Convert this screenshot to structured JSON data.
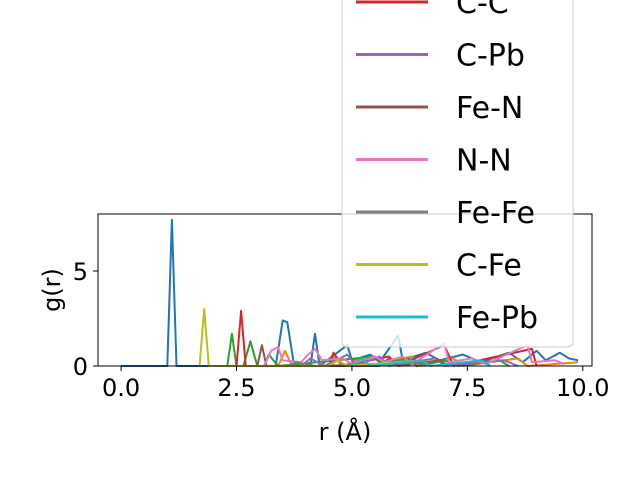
{
  "chart_data": {
    "type": "line",
    "title": "",
    "xlabel": "r (Å)",
    "ylabel": "g(r)",
    "xlim": [
      -0.5,
      10.2
    ],
    "ylim": [
      0,
      8
    ],
    "xticks": [
      0.0,
      2.5,
      5.0,
      7.5,
      10.0
    ],
    "xtick_labels": [
      "0.0",
      "2.5",
      "5.0",
      "7.5",
      "10.0"
    ],
    "yticks": [
      0,
      5
    ],
    "ytick_labels": [
      "0",
      "5"
    ],
    "grid": false,
    "legend_position": "top-right",
    "series": [
      {
        "name": "",
        "color": "#1f77b4",
        "points": [
          [
            0,
            0
          ],
          [
            1.0,
            0
          ],
          [
            1.1,
            7.7
          ],
          [
            1.2,
            0
          ],
          [
            3.35,
            0
          ],
          [
            3.5,
            2.4
          ],
          [
            3.6,
            2.3
          ],
          [
            3.75,
            0
          ],
          [
            4.1,
            0
          ],
          [
            4.2,
            1.7
          ],
          [
            4.3,
            0
          ],
          [
            4.9,
            1.1
          ],
          [
            5.0,
            0.3
          ],
          [
            5.4,
            0.6
          ],
          [
            5.6,
            0.2
          ],
          [
            6.0,
            1.6
          ],
          [
            6.1,
            0.3
          ],
          [
            6.6,
            0.7
          ],
          [
            6.9,
            0.3
          ],
          [
            7.4,
            0.6
          ],
          [
            7.8,
            0.2
          ],
          [
            8.4,
            0.7
          ],
          [
            8.7,
            0.2
          ],
          [
            9.0,
            0.8
          ],
          [
            9.2,
            0.3
          ],
          [
            9.5,
            0.7
          ],
          [
            9.7,
            0.4
          ],
          [
            9.9,
            0.3
          ]
        ]
      },
      {
        "name": "",
        "color": "#ff7f0e",
        "points": [
          [
            3.4,
            0
          ],
          [
            3.55,
            0.8
          ],
          [
            3.7,
            0
          ],
          [
            4.5,
            0
          ],
          [
            4.6,
            0.5
          ],
          [
            4.8,
            0
          ],
          [
            5.2,
            0.4
          ],
          [
            5.4,
            0
          ],
          [
            6.3,
            0.5
          ],
          [
            6.5,
            0
          ],
          [
            7.2,
            0.4
          ],
          [
            7.4,
            0
          ],
          [
            8.6,
            0.4
          ],
          [
            8.8,
            0
          ],
          [
            9.9,
            0.2
          ]
        ]
      },
      {
        "name": "",
        "color": "#2ca02c",
        "points": [
          [
            2.3,
            0
          ],
          [
            2.4,
            1.7
          ],
          [
            2.5,
            0
          ],
          [
            2.65,
            0
          ],
          [
            2.8,
            1.3
          ],
          [
            2.95,
            0
          ],
          [
            3.1,
            0
          ],
          [
            3.2,
            0.6
          ],
          [
            3.4,
            0
          ],
          [
            5.5,
            0.5
          ],
          [
            5.7,
            0.1
          ],
          [
            6.2,
            0.4
          ],
          [
            6.4,
            0
          ],
          [
            7.0,
            0.3
          ],
          [
            7.3,
            0
          ],
          [
            8.2,
            0.3
          ],
          [
            8.4,
            0
          ]
        ]
      },
      {
        "name": "C-C",
        "color": "#d62728",
        "points": [
          [
            2.5,
            0
          ],
          [
            2.6,
            2.9
          ],
          [
            2.7,
            0
          ],
          [
            4.5,
            0
          ],
          [
            4.6,
            0.7
          ],
          [
            4.8,
            0
          ],
          [
            5.8,
            0.5
          ],
          [
            6.0,
            0
          ],
          [
            7.0,
            1.1
          ],
          [
            7.2,
            0
          ],
          [
            8.9,
            0.9
          ],
          [
            9.0,
            0
          ]
        ]
      },
      {
        "name": "C-Pb",
        "color": "#9467bd",
        "points": [
          [
            3.9,
            0
          ],
          [
            4.1,
            0.4
          ],
          [
            4.4,
            0
          ],
          [
            4.9,
            0.6
          ],
          [
            5.1,
            0
          ],
          [
            5.6,
            0.5
          ],
          [
            5.8,
            0
          ],
          [
            6.8,
            0.4
          ],
          [
            7.0,
            0
          ],
          [
            8.3,
            0.3
          ],
          [
            8.6,
            0
          ]
        ]
      },
      {
        "name": "Fe-N",
        "color": "#8c564b",
        "points": [
          [
            2.95,
            0
          ],
          [
            3.05,
            1.1
          ],
          [
            3.15,
            0
          ],
          [
            5.6,
            0
          ],
          [
            5.8,
            0.4
          ],
          [
            6.0,
            0
          ],
          [
            6.9,
            0.3
          ],
          [
            7.1,
            0
          ]
        ]
      },
      {
        "name": "N-N",
        "color": "#e377c2",
        "points": [
          [
            3.1,
            0
          ],
          [
            3.25,
            0.8
          ],
          [
            3.4,
            1.0
          ],
          [
            3.5,
            0.3
          ],
          [
            3.9,
            0.2
          ],
          [
            4.05,
            0.6
          ],
          [
            4.2,
            0.9
          ],
          [
            4.35,
            0.3
          ],
          [
            4.8,
            0.4
          ],
          [
            5.0,
            0.1
          ],
          [
            5.5,
            0.5
          ],
          [
            5.7,
            0.2
          ],
          [
            6.1,
            0.5
          ],
          [
            6.3,
            0.1
          ],
          [
            7.0,
            1.2
          ],
          [
            7.1,
            0.2
          ],
          [
            7.6,
            0.4
          ],
          [
            7.9,
            0.1
          ],
          [
            8.8,
            1.1
          ],
          [
            8.9,
            0.2
          ],
          [
            9.4,
            0.3
          ],
          [
            9.6,
            0.1
          ]
        ]
      },
      {
        "name": "Fe-Fe",
        "color": "#7f7f7f",
        "points": [
          [
            3.6,
            0
          ],
          [
            3.8,
            0.2
          ],
          [
            4.2,
            0
          ],
          [
            6.4,
            0.2
          ],
          [
            6.6,
            0
          ]
        ]
      },
      {
        "name": "C-Fe",
        "color": "#bcbd22",
        "points": [
          [
            1.7,
            0
          ],
          [
            1.8,
            3.0
          ],
          [
            1.9,
            0
          ],
          [
            4.5,
            0
          ],
          [
            4.7,
            0.3
          ],
          [
            4.9,
            0
          ],
          [
            6.5,
            0.3
          ],
          [
            6.7,
            0
          ]
        ]
      },
      {
        "name": "Fe-Pb",
        "color": "#17becf",
        "points": [
          [
            5.0,
            0
          ],
          [
            5.2,
            0.4
          ],
          [
            5.4,
            0
          ],
          [
            6.5,
            0.3
          ],
          [
            6.7,
            0
          ],
          [
            7.8,
            0.3
          ],
          [
            8.0,
            0
          ]
        ]
      }
    ]
  }
}
